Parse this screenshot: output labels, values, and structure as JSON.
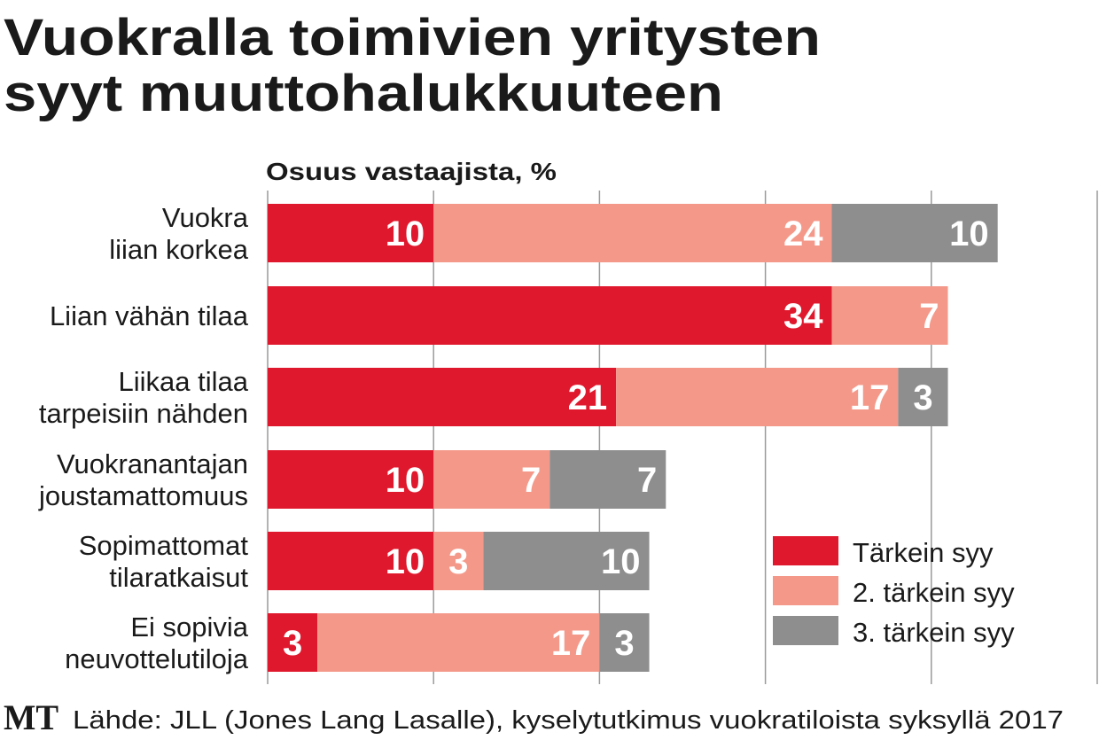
{
  "chart_data": {
    "type": "bar",
    "orientation": "horizontal",
    "stacked": true,
    "title": "Vuokralla toimivien yritysten syyt muuttohalukkuuteen",
    "title_lines": [
      "Vuokralla toimivien yritysten",
      "syyt muuttohalukkuuteen"
    ],
    "xlabel": "Osuus vastaajista, %",
    "xlim": [
      0,
      50
    ],
    "grid": true,
    "gridlines": [
      10,
      20,
      30,
      40,
      50
    ],
    "legend_position": "bottom-right",
    "categories": [
      [
        "Vuokra",
        "liian korkea"
      ],
      [
        "Liian vähän tilaa"
      ],
      [
        "Liikaa tilaa",
        "tarpeisiin nähden"
      ],
      [
        "Vuokranantajan",
        "joustamattomuus"
      ],
      [
        "Sopimattomat",
        "tilaratkaisut"
      ],
      [
        "Ei sopivia",
        "neuvottelutiloja"
      ]
    ],
    "series": [
      {
        "name": "Tärkein syy",
        "color": "#e0182d",
        "values": [
          10,
          34,
          21,
          10,
          10,
          3
        ]
      },
      {
        "name": "2. tärkein syy",
        "color": "#f4998a",
        "values": [
          24,
          7,
          17,
          7,
          3,
          17
        ]
      },
      {
        "name": "3. tärkein syy",
        "color": "#8e8e8e",
        "values": [
          10,
          0,
          3,
          7,
          10,
          3
        ]
      }
    ],
    "source": "Lähde: JLL (Jones Lang Lasalle), kyselytutkimus vuokratiloista syksyllä 2017",
    "logo": "MT"
  }
}
